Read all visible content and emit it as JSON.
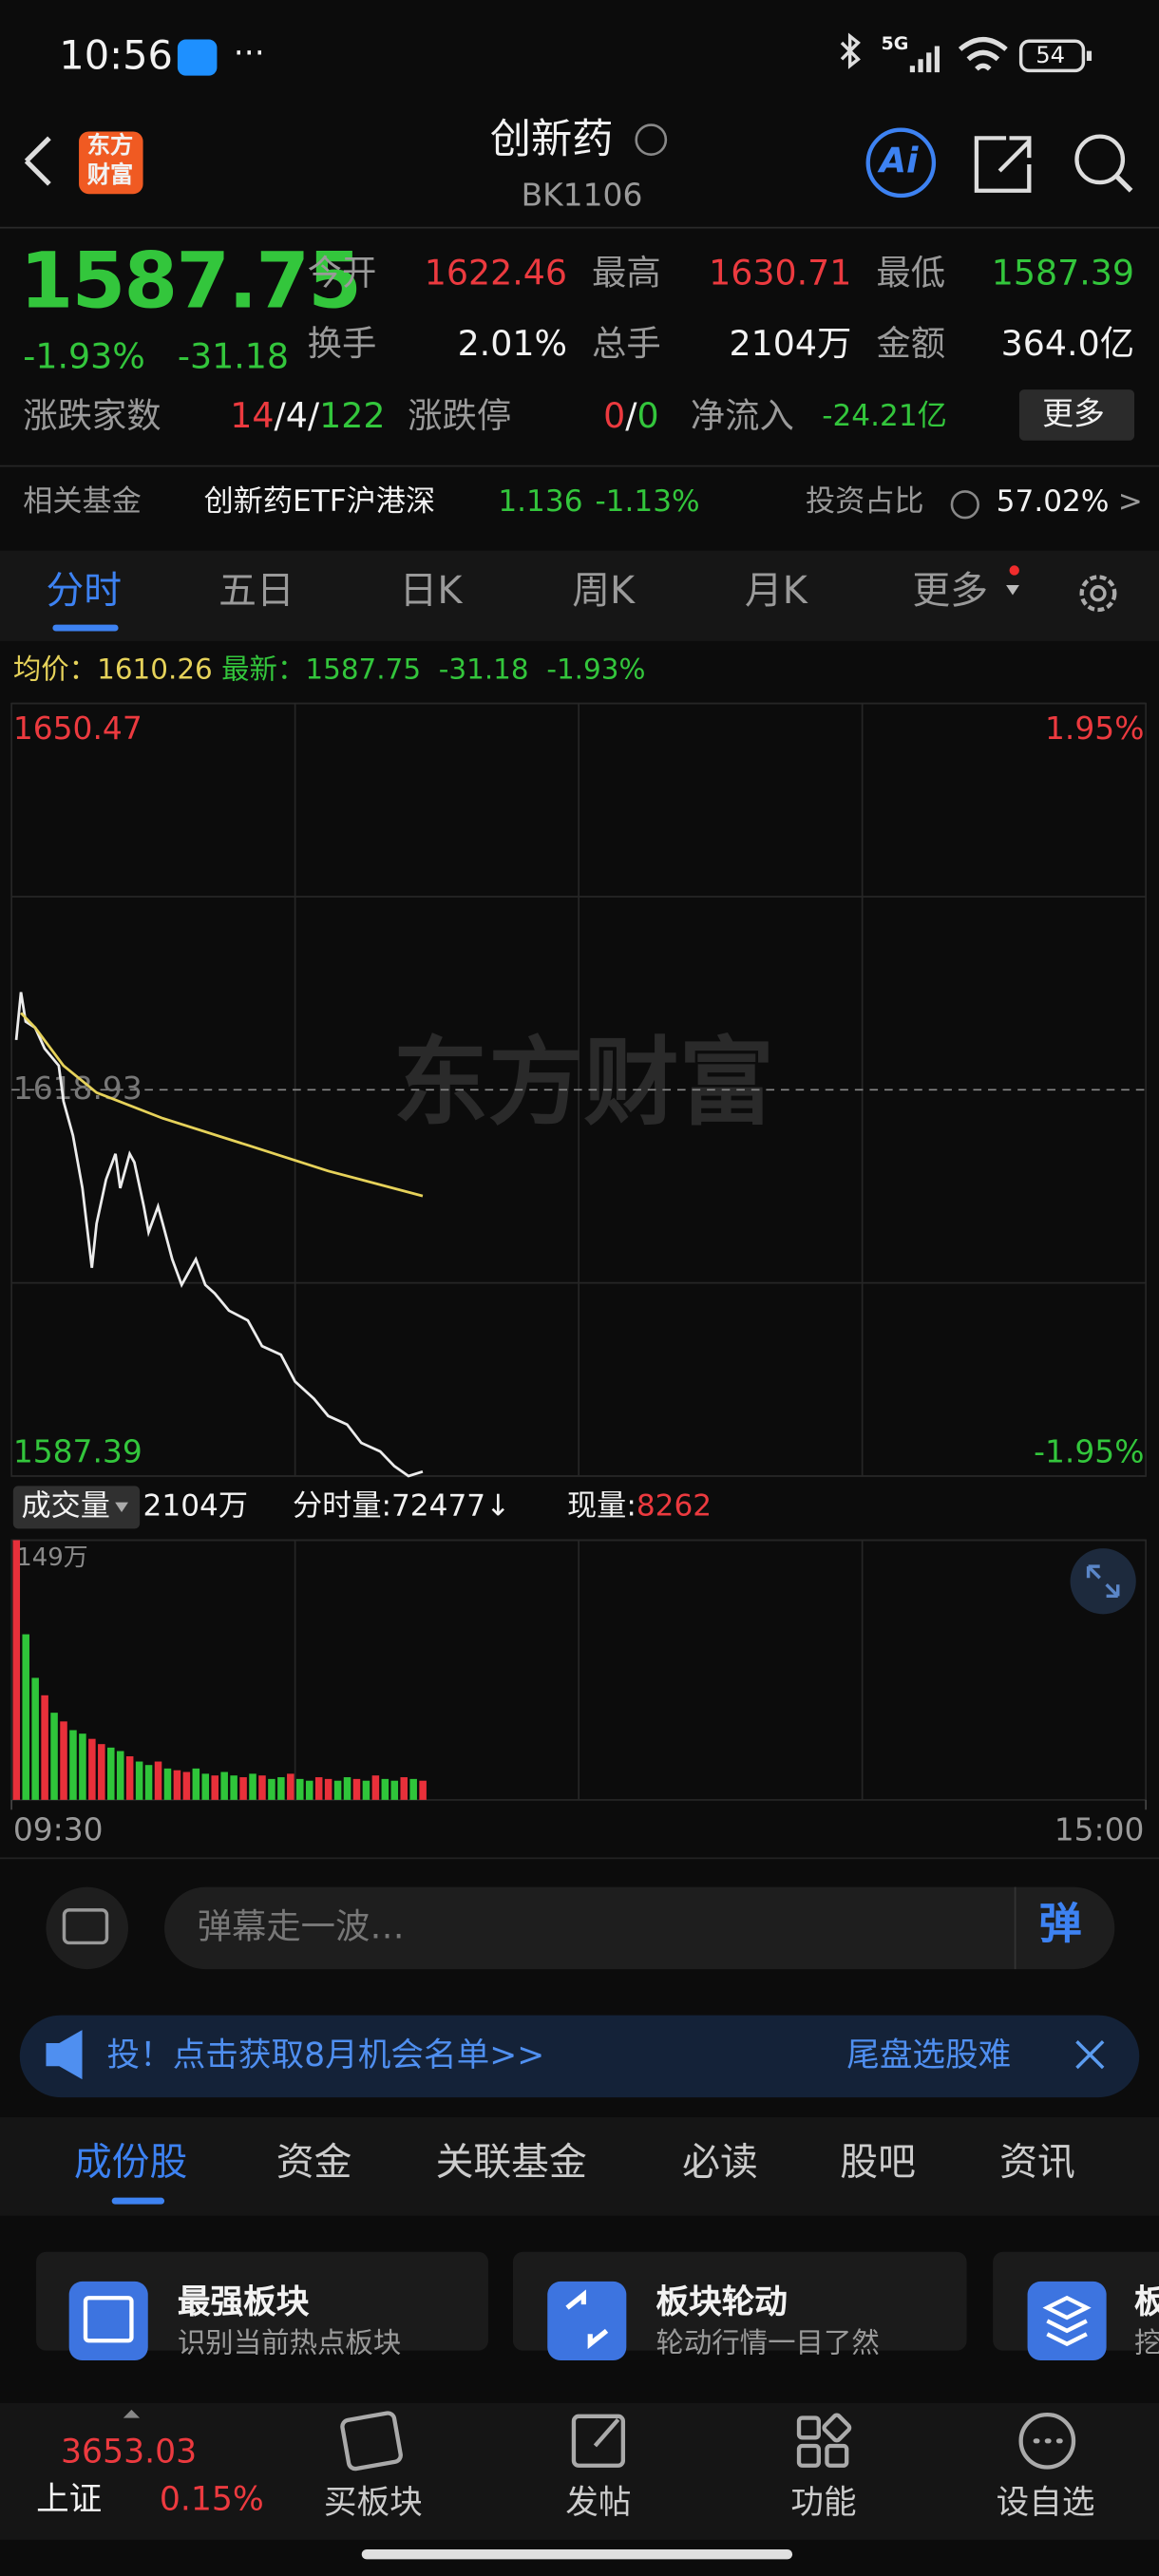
{
  "status": {
    "time": "10:56",
    "more": "···",
    "network": "5G",
    "battery": "54"
  },
  "header": {
    "logo": [
      "东方",
      "财富"
    ],
    "title": "创新药",
    "code": "BK1106",
    "ai": "Ai"
  },
  "quote": {
    "price": "1587.75",
    "change_pct": "-1.93%",
    "change": "-31.18",
    "stats": [
      {
        "label": "今开",
        "value": "1622.46"
      },
      {
        "label": "最高",
        "value": "1630.71"
      },
      {
        "label": "最低",
        "value": "1587.39"
      },
      {
        "label": "换手",
        "value": "2.01%"
      },
      {
        "label": "总手",
        "value": "2104万"
      },
      {
        "label": "金额",
        "value": "364.0亿"
      }
    ],
    "breadth": {
      "label": "涨跌家数",
      "up": "14",
      "flat": "4",
      "down": "122",
      "sep": "/"
    },
    "limit": {
      "label": "涨跌停",
      "up": "0",
      "down": "0"
    },
    "inflow": {
      "label": "净流入",
      "value": "-24.21亿"
    },
    "more": "更多"
  },
  "fund": {
    "label": "相关基金",
    "name": "创新药ETF沪港深",
    "price": "1.136",
    "change": "-1.13%",
    "weight_label": "投资占比",
    "weight": "57.02%",
    "arrow": ">"
  },
  "tabs": [
    "分时",
    "五日",
    "日K",
    "周K",
    "月K",
    "更多"
  ],
  "chart_header": {
    "avg": "1610.26",
    "last": "1587.75",
    "change": "-31.18",
    "change_pct": "-1.93%"
  },
  "watermark": "东方财富",
  "chart_data": [
    {
      "type": "line",
      "xlim": [
        0,
        240
      ],
      "xticks": [
        {
          "value": 0,
          "label": "09:30"
        },
        {
          "value": 240,
          "label": "15:00"
        }
      ],
      "ylim": [
        1587.39,
        1650.47
      ],
      "yticks": [
        1650.47,
        1618.93,
        1587.39
      ],
      "y2lim": [
        -1.95,
        1.95
      ],
      "y2ticks": [
        {
          "value": 1.95,
          "label": "1.95%"
        },
        {
          "value": -1.95,
          "label": "-1.95%"
        }
      ],
      "series": [
        {
          "name": "最新：",
          "color": "#ececec",
          "x": [
            1,
            2,
            3,
            5,
            7,
            10,
            11,
            13,
            15,
            17,
            18,
            20,
            22,
            23,
            25,
            26,
            28,
            29,
            31,
            32,
            34,
            36,
            37,
            39,
            41,
            43,
            46,
            50,
            53,
            57,
            60,
            64,
            67,
            71,
            74,
            78,
            81,
            84,
            87
          ],
          "values": [
            1623.0,
            1626.9,
            1624.5,
            1624.0,
            1622.3,
            1620.9,
            1618.0,
            1615.2,
            1610.9,
            1604.4,
            1608.0,
            1611.6,
            1613.7,
            1610.9,
            1613.7,
            1613.0,
            1609.4,
            1607.3,
            1609.4,
            1608.0,
            1605.1,
            1603.0,
            1603.7,
            1605.1,
            1603.0,
            1602.3,
            1600.9,
            1600.1,
            1598.0,
            1597.3,
            1595.1,
            1593.7,
            1592.3,
            1591.6,
            1590.1,
            1589.4,
            1588.2,
            1587.39,
            1587.75
          ]
        },
        {
          "name": "均价：",
          "color": "#e6d25a",
          "x": [
            2,
            5,
            11,
            18,
            32,
            50,
            67,
            87
          ],
          "values": [
            1625.2,
            1624.0,
            1620.9,
            1618.7,
            1616.6,
            1614.4,
            1612.3,
            1610.26
          ]
        }
      ]
    },
    {
      "type": "bar",
      "xlim": [
        0,
        240
      ],
      "ylim": [
        0,
        149
      ],
      "yticks": [
        {
          "value": 149,
          "label": "149万"
        }
      ],
      "x": [
        0,
        2,
        4,
        6,
        8,
        10,
        12,
        14,
        16,
        18,
        20,
        22,
        24,
        26,
        28,
        30,
        32,
        34,
        36,
        38,
        40,
        42,
        44,
        46,
        48,
        50,
        52,
        54,
        56,
        58,
        60,
        62,
        64,
        66,
        68,
        70,
        72,
        74,
        76,
        78,
        80,
        82,
        84,
        86
      ],
      "values": [
        149,
        95,
        70,
        60,
        50,
        45,
        40,
        38,
        35,
        32,
        30,
        28,
        25,
        22,
        20,
        22,
        18,
        17,
        16,
        18,
        15,
        14,
        16,
        14,
        13,
        15,
        14,
        12,
        13,
        15,
        12,
        11,
        13,
        12,
        11,
        13,
        12,
        11,
        14,
        12,
        11,
        13,
        12,
        11
      ],
      "colors": [
        "#e8303a",
        "#2fc53a",
        "#2fc53a",
        "#e8303a",
        "#2fc53a",
        "#e8303a",
        "#2fc53a",
        "#2fc53a",
        "#e8303a",
        "#e8303a",
        "#2fc53a",
        "#2fc53a",
        "#e8303a",
        "#2fc53a",
        "#2fc53a",
        "#e8303a",
        "#2fc53a",
        "#e8303a",
        "#e8303a",
        "#2fc53a",
        "#2fc53a",
        "#e8303a",
        "#2fc53a",
        "#2fc53a",
        "#e8303a",
        "#2fc53a",
        "#e8303a",
        "#2fc53a",
        "#2fc53a",
        "#e8303a",
        "#2fc53a",
        "#2fc53a",
        "#e8303a",
        "#e8303a",
        "#2fc53a",
        "#2fc53a",
        "#e8303a",
        "#2fc53a",
        "#e8303a",
        "#2fc53a",
        "#2fc53a",
        "#e8303a",
        "#2fc53a",
        "#e8303a"
      ]
    }
  ],
  "volume_header": {
    "label": "成交量",
    "total": "2104万",
    "tick_label": "分时量:",
    "tick_value": "72477↓",
    "now_label": "现量:",
    "now_value": "8262"
  },
  "danmu": {
    "placeholder": "弹幕走一波…",
    "button": "弹"
  },
  "banner": {
    "text": "投！点击获取8月机会名单>>",
    "right": "尾盘选股难"
  },
  "sections": [
    "成份股",
    "资金",
    "关联基金",
    "必读",
    "股吧",
    "资讯"
  ],
  "cards": [
    {
      "title": "最强板块",
      "subtitle": "识别当前热点板块"
    },
    {
      "title": "板块轮动",
      "subtitle": "轮动行情一目了然"
    },
    {
      "title": "板",
      "subtitle": "挖"
    }
  ],
  "nav": {
    "index_value": "3653.03",
    "index_name": "上证",
    "index_change": "0.15%",
    "items": [
      "买板块",
      "发帖",
      "功能",
      "设自选"
    ]
  }
}
